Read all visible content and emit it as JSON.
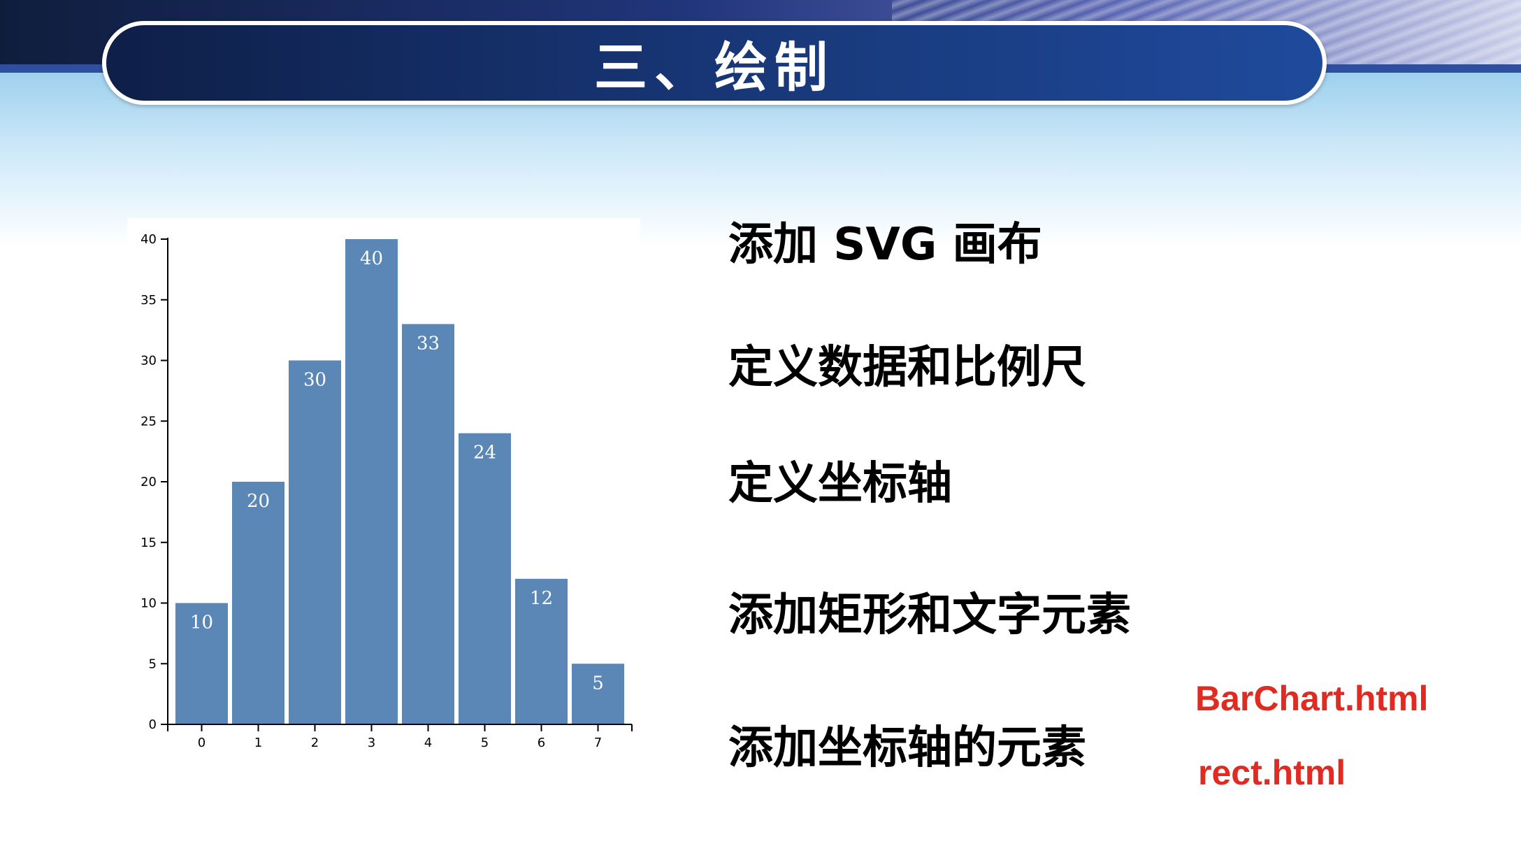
{
  "slide": {
    "title": "三、绘制"
  },
  "steps": [
    "添加 SVG 画布",
    "定义数据和比例尺",
    "定义坐标轴",
    "添加矩形和文字元素",
    "添加坐标轴的元素"
  ],
  "links": {
    "barchart": "BarChart.html",
    "rect": "rect.html"
  },
  "colors": {
    "bar": "#5a87b6",
    "bar_label": "#ffffff",
    "link": "#e02b22",
    "banner": "#16326e"
  },
  "chart_data": {
    "type": "bar",
    "categories": [
      "0",
      "1",
      "2",
      "3",
      "4",
      "5",
      "6",
      "7"
    ],
    "values": [
      10,
      20,
      30,
      40,
      33,
      24,
      12,
      5
    ],
    "y_ticks": [
      "0",
      "5",
      "10",
      "15",
      "20",
      "25",
      "30",
      "35",
      "40"
    ],
    "ylim": [
      0,
      40
    ],
    "title": "",
    "xlabel": "",
    "ylabel": "",
    "grid": false
  }
}
